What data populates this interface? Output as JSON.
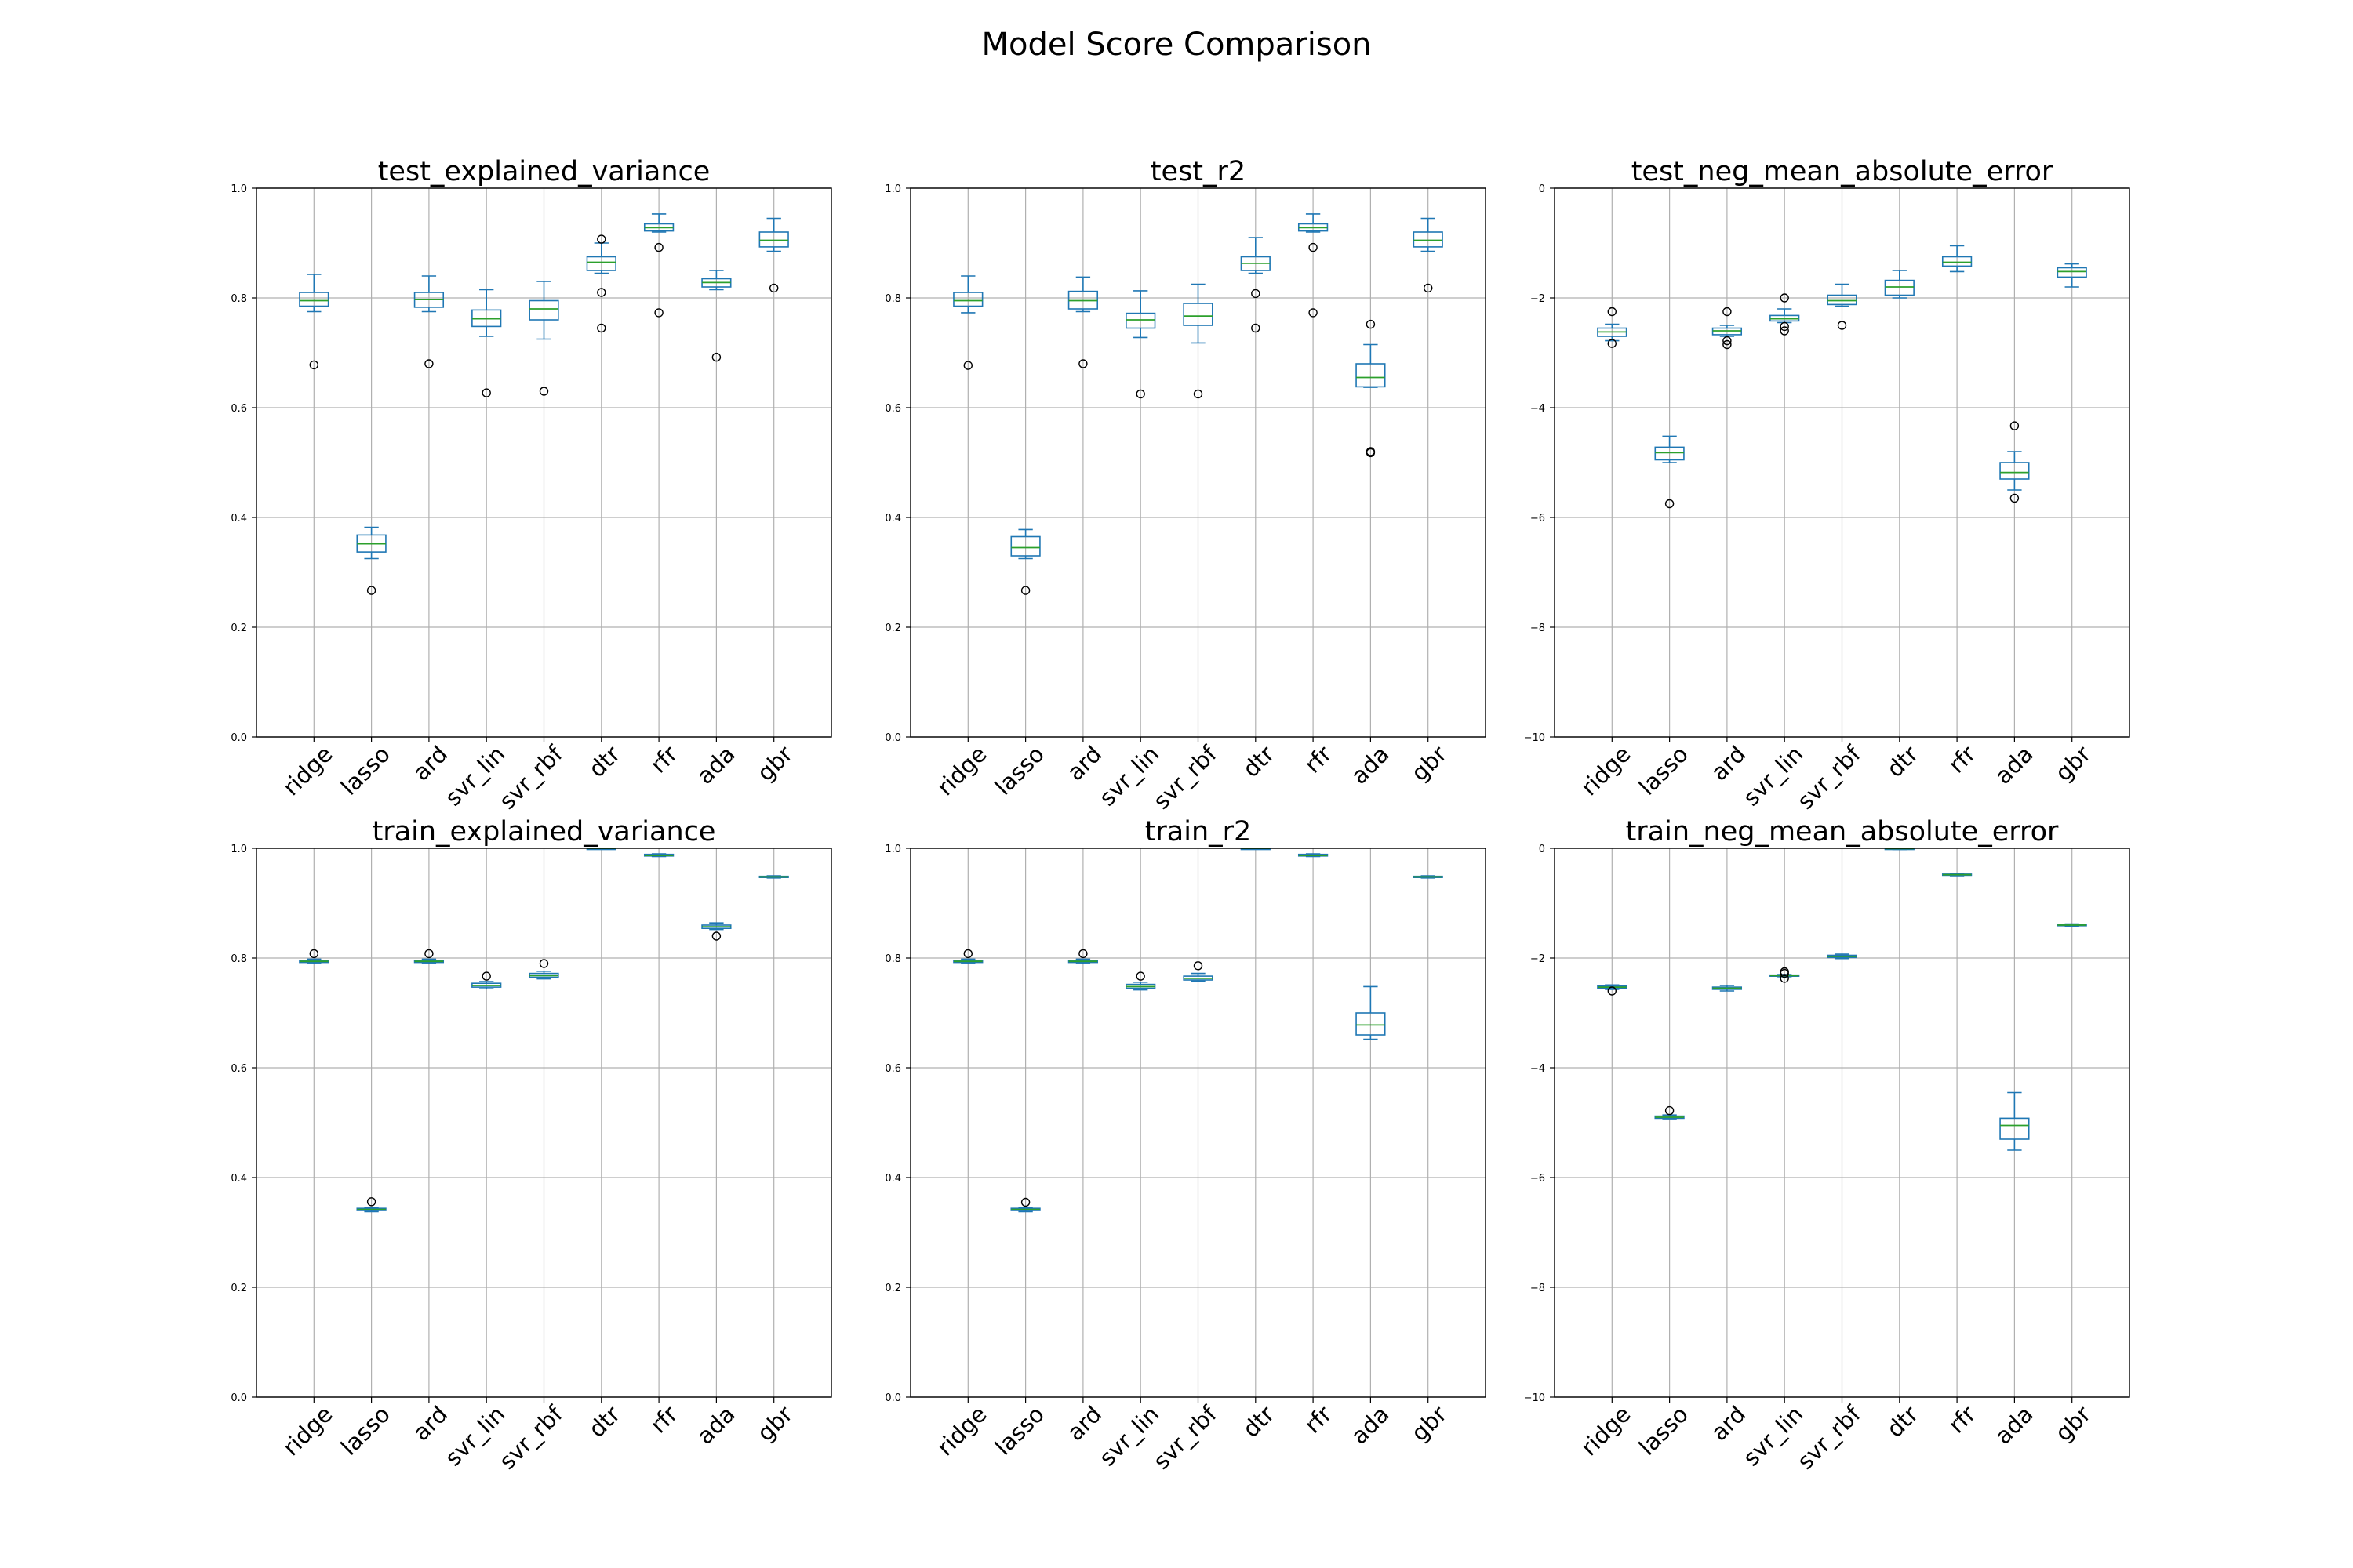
{
  "figure": {
    "title": "Model Score Comparison"
  },
  "colors": {
    "box": "#1f77b4",
    "median": "#2ca02c",
    "grid": "#b0b0b0",
    "axes": "#000000",
    "flier_edge": "#000000"
  },
  "chart_data": [
    {
      "type": "box",
      "title": "test_explained_variance",
      "categories": [
        "ridge",
        "lasso",
        "ard",
        "svr_lin",
        "svr_rbf",
        "dtr",
        "rfr",
        "ada",
        "gbr"
      ],
      "ylim": [
        0.0,
        1.0
      ],
      "yticks": [
        "0.0",
        "0.2",
        "0.4",
        "0.6",
        "0.8",
        "1.0"
      ],
      "grid": true,
      "boxes": [
        {
          "whislo": 0.775,
          "q1": 0.785,
          "med": 0.795,
          "q3": 0.81,
          "whishi": 0.843,
          "fliers": [
            0.678
          ]
        },
        {
          "whislo": 0.325,
          "q1": 0.337,
          "med": 0.352,
          "q3": 0.368,
          "whishi": 0.382,
          "fliers": [
            0.267
          ]
        },
        {
          "whislo": 0.775,
          "q1": 0.783,
          "med": 0.797,
          "q3": 0.81,
          "whishi": 0.84,
          "fliers": [
            0.68
          ]
        },
        {
          "whislo": 0.73,
          "q1": 0.748,
          "med": 0.762,
          "q3": 0.778,
          "whishi": 0.815,
          "fliers": [
            0.627
          ]
        },
        {
          "whislo": 0.725,
          "q1": 0.76,
          "med": 0.78,
          "q3": 0.795,
          "whishi": 0.83,
          "fliers": [
            0.63
          ]
        },
        {
          "whislo": 0.845,
          "q1": 0.85,
          "med": 0.865,
          "q3": 0.875,
          "whishi": 0.9,
          "fliers": [
            0.907,
            0.81,
            0.745
          ]
        },
        {
          "whislo": 0.92,
          "q1": 0.922,
          "med": 0.928,
          "q3": 0.935,
          "whishi": 0.953,
          "fliers": [
            0.892,
            0.773
          ]
        },
        {
          "whislo": 0.815,
          "q1": 0.82,
          "med": 0.828,
          "q3": 0.835,
          "whishi": 0.85,
          "fliers": [
            0.692
          ]
        },
        {
          "whislo": 0.885,
          "q1": 0.893,
          "med": 0.905,
          "q3": 0.92,
          "whishi": 0.945,
          "fliers": [
            0.818
          ]
        }
      ]
    },
    {
      "type": "box",
      "title": "test_r2",
      "categories": [
        "ridge",
        "lasso",
        "ard",
        "svr_lin",
        "svr_rbf",
        "dtr",
        "rfr",
        "ada",
        "gbr"
      ],
      "ylim": [
        0.0,
        1.0
      ],
      "yticks": [
        "0.0",
        "0.2",
        "0.4",
        "0.6",
        "0.8",
        "1.0"
      ],
      "grid": true,
      "boxes": [
        {
          "whislo": 0.773,
          "q1": 0.785,
          "med": 0.795,
          "q3": 0.81,
          "whishi": 0.84,
          "fliers": [
            0.677
          ]
        },
        {
          "whislo": 0.325,
          "q1": 0.33,
          "med": 0.345,
          "q3": 0.365,
          "whishi": 0.378,
          "fliers": [
            0.267
          ]
        },
        {
          "whislo": 0.775,
          "q1": 0.78,
          "med": 0.795,
          "q3": 0.812,
          "whishi": 0.838,
          "fliers": [
            0.68
          ]
        },
        {
          "whislo": 0.728,
          "q1": 0.745,
          "med": 0.76,
          "q3": 0.772,
          "whishi": 0.813,
          "fliers": [
            0.625
          ]
        },
        {
          "whislo": 0.718,
          "q1": 0.75,
          "med": 0.767,
          "q3": 0.79,
          "whishi": 0.825,
          "fliers": [
            0.625
          ]
        },
        {
          "whislo": 0.845,
          "q1": 0.85,
          "med": 0.863,
          "q3": 0.875,
          "whishi": 0.91,
          "fliers": [
            0.808,
            0.745
          ]
        },
        {
          "whislo": 0.92,
          "q1": 0.922,
          "med": 0.928,
          "q3": 0.935,
          "whishi": 0.953,
          "fliers": [
            0.892,
            0.773
          ]
        },
        {
          "whislo": 0.637,
          "q1": 0.638,
          "med": 0.655,
          "q3": 0.68,
          "whishi": 0.715,
          "fliers": [
            0.752,
            0.518,
            0.52
          ]
        },
        {
          "whislo": 0.885,
          "q1": 0.893,
          "med": 0.905,
          "q3": 0.92,
          "whishi": 0.945,
          "fliers": [
            0.818
          ]
        }
      ]
    },
    {
      "type": "box",
      "title": "test_neg_mean_absolute_error",
      "categories": [
        "ridge",
        "lasso",
        "ard",
        "svr_lin",
        "svr_rbf",
        "dtr",
        "rfr",
        "ada",
        "gbr"
      ],
      "ylim": [
        -10,
        0
      ],
      "yticks": [
        "−10",
        "−8",
        "−6",
        "−4",
        "−2",
        "0"
      ],
      "grid": true,
      "boxes": [
        {
          "whislo": -2.78,
          "q1": -2.7,
          "med": -2.62,
          "q3": -2.55,
          "whishi": -2.48,
          "fliers": [
            -2.25,
            -2.83
          ]
        },
        {
          "whislo": -5.0,
          "q1": -4.95,
          "med": -4.82,
          "q3": -4.72,
          "whishi": -4.52,
          "fliers": [
            -5.75
          ]
        },
        {
          "whislo": -2.7,
          "q1": -2.67,
          "med": -2.6,
          "q3": -2.55,
          "whishi": -2.5,
          "fliers": [
            -2.25,
            -2.78,
            -2.85
          ]
        },
        {
          "whislo": -2.45,
          "q1": -2.42,
          "med": -2.38,
          "q3": -2.32,
          "whishi": -2.2,
          "fliers": [
            -2.0,
            -2.52,
            -2.6
          ]
        },
        {
          "whislo": -2.15,
          "q1": -2.12,
          "med": -2.05,
          "q3": -1.95,
          "whishi": -1.75,
          "fliers": [
            -2.5
          ]
        },
        {
          "whislo": -2.0,
          "q1": -1.95,
          "med": -1.8,
          "q3": -1.68,
          "whishi": -1.5,
          "fliers": []
        },
        {
          "whislo": -1.52,
          "q1": -1.42,
          "med": -1.35,
          "q3": -1.25,
          "whishi": -1.05,
          "fliers": []
        },
        {
          "whislo": -5.5,
          "q1": -5.3,
          "med": -5.18,
          "q3": -5.0,
          "whishi": -4.8,
          "fliers": [
            -4.33,
            -5.65
          ]
        },
        {
          "whislo": -1.8,
          "q1": -1.62,
          "med": -1.52,
          "q3": -1.45,
          "whishi": -1.38,
          "fliers": []
        }
      ]
    },
    {
      "type": "box",
      "title": "train_explained_variance",
      "categories": [
        "ridge",
        "lasso",
        "ard",
        "svr_lin",
        "svr_rbf",
        "dtr",
        "rfr",
        "ada",
        "gbr"
      ],
      "ylim": [
        0.0,
        1.0
      ],
      "yticks": [
        "0.0",
        "0.2",
        "0.4",
        "0.6",
        "0.8",
        "1.0"
      ],
      "grid": true,
      "boxes": [
        {
          "whislo": 0.79,
          "q1": 0.792,
          "med": 0.794,
          "q3": 0.796,
          "whishi": 0.798,
          "fliers": [
            0.808
          ]
        },
        {
          "whislo": 0.338,
          "q1": 0.34,
          "med": 0.342,
          "q3": 0.344,
          "whishi": 0.346,
          "fliers": [
            0.356
          ]
        },
        {
          "whislo": 0.79,
          "q1": 0.792,
          "med": 0.794,
          "q3": 0.796,
          "whishi": 0.798,
          "fliers": [
            0.808
          ]
        },
        {
          "whislo": 0.744,
          "q1": 0.747,
          "med": 0.75,
          "q3": 0.754,
          "whishi": 0.757,
          "fliers": [
            0.767
          ]
        },
        {
          "whislo": 0.762,
          "q1": 0.765,
          "med": 0.768,
          "q3": 0.772,
          "whishi": 0.776,
          "fliers": [
            0.79
          ]
        },
        {
          "whislo": 0.999,
          "q1": 0.9995,
          "med": 1.0,
          "q3": 1.0,
          "whishi": 1.0,
          "fliers": []
        },
        {
          "whislo": 0.985,
          "q1": 0.986,
          "med": 0.987,
          "q3": 0.989,
          "whishi": 0.99,
          "fliers": []
        },
        {
          "whislo": 0.852,
          "q1": 0.854,
          "med": 0.857,
          "q3": 0.86,
          "whishi": 0.864,
          "fliers": [
            0.84
          ]
        },
        {
          "whislo": 0.946,
          "q1": 0.947,
          "med": 0.948,
          "q3": 0.949,
          "whishi": 0.95,
          "fliers": []
        }
      ]
    },
    {
      "type": "box",
      "title": "train_r2",
      "categories": [
        "ridge",
        "lasso",
        "ard",
        "svr_lin",
        "svr_rbf",
        "dtr",
        "rfr",
        "ada",
        "gbr"
      ],
      "ylim": [
        0.0,
        1.0
      ],
      "yticks": [
        "0.0",
        "0.2",
        "0.4",
        "0.6",
        "0.8",
        "1.0"
      ],
      "grid": true,
      "boxes": [
        {
          "whislo": 0.79,
          "q1": 0.792,
          "med": 0.794,
          "q3": 0.796,
          "whishi": 0.798,
          "fliers": [
            0.808
          ]
        },
        {
          "whislo": 0.338,
          "q1": 0.34,
          "med": 0.342,
          "q3": 0.344,
          "whishi": 0.346,
          "fliers": [
            0.355
          ]
        },
        {
          "whislo": 0.79,
          "q1": 0.792,
          "med": 0.794,
          "q3": 0.796,
          "whishi": 0.798,
          "fliers": [
            0.808
          ]
        },
        {
          "whislo": 0.742,
          "q1": 0.745,
          "med": 0.748,
          "q3": 0.752,
          "whishi": 0.756,
          "fliers": [
            0.767
          ]
        },
        {
          "whislo": 0.758,
          "q1": 0.76,
          "med": 0.763,
          "q3": 0.767,
          "whishi": 0.772,
          "fliers": [
            0.786
          ]
        },
        {
          "whislo": 0.999,
          "q1": 0.9995,
          "med": 1.0,
          "q3": 1.0,
          "whishi": 1.0,
          "fliers": []
        },
        {
          "whislo": 0.985,
          "q1": 0.986,
          "med": 0.987,
          "q3": 0.989,
          "whishi": 0.99,
          "fliers": []
        },
        {
          "whislo": 0.652,
          "q1": 0.66,
          "med": 0.678,
          "q3": 0.7,
          "whishi": 0.748,
          "fliers": []
        },
        {
          "whislo": 0.946,
          "q1": 0.947,
          "med": 0.948,
          "q3": 0.949,
          "whishi": 0.95,
          "fliers": []
        }
      ]
    },
    {
      "type": "box",
      "title": "train_neg_mean_absolute_error",
      "categories": [
        "ridge",
        "lasso",
        "ard",
        "svr_lin",
        "svr_rbf",
        "dtr",
        "rfr",
        "ada",
        "gbr"
      ],
      "ylim": [
        -10,
        0
      ],
      "yticks": [
        "−10",
        "−8",
        "−6",
        "−4",
        "−2",
        "0"
      ],
      "grid": true,
      "boxes": [
        {
          "whislo": -2.57,
          "q1": -2.55,
          "med": -2.53,
          "q3": -2.51,
          "whishi": -2.49,
          "fliers": [
            -2.6
          ]
        },
        {
          "whislo": -4.93,
          "q1": -4.92,
          "med": -4.9,
          "q3": -4.88,
          "whishi": -4.86,
          "fliers": [
            -4.78
          ]
        },
        {
          "whislo": -2.6,
          "q1": -2.57,
          "med": -2.55,
          "q3": -2.53,
          "whishi": -2.5,
          "fliers": []
        },
        {
          "whislo": -2.34,
          "q1": -2.33,
          "med": -2.32,
          "q3": -2.31,
          "whishi": -2.3,
          "fliers": [
            -2.25,
            -2.28,
            -2.37
          ]
        },
        {
          "whislo": -2.01,
          "q1": -1.99,
          "med": -1.97,
          "q3": -1.95,
          "whishi": -1.93,
          "fliers": []
        },
        {
          "whislo": -0.02,
          "q1": -0.01,
          "med": -0.005,
          "q3": 0.0,
          "whishi": 0.0,
          "fliers": []
        },
        {
          "whislo": -0.5,
          "q1": -0.49,
          "med": -0.48,
          "q3": -0.47,
          "whishi": -0.46,
          "fliers": []
        },
        {
          "whislo": -5.5,
          "q1": -5.3,
          "med": -5.05,
          "q3": -4.92,
          "whishi": -4.45,
          "fliers": []
        },
        {
          "whislo": -1.42,
          "q1": -1.41,
          "med": -1.4,
          "q3": -1.39,
          "whishi": -1.38,
          "fliers": []
        }
      ]
    }
  ]
}
